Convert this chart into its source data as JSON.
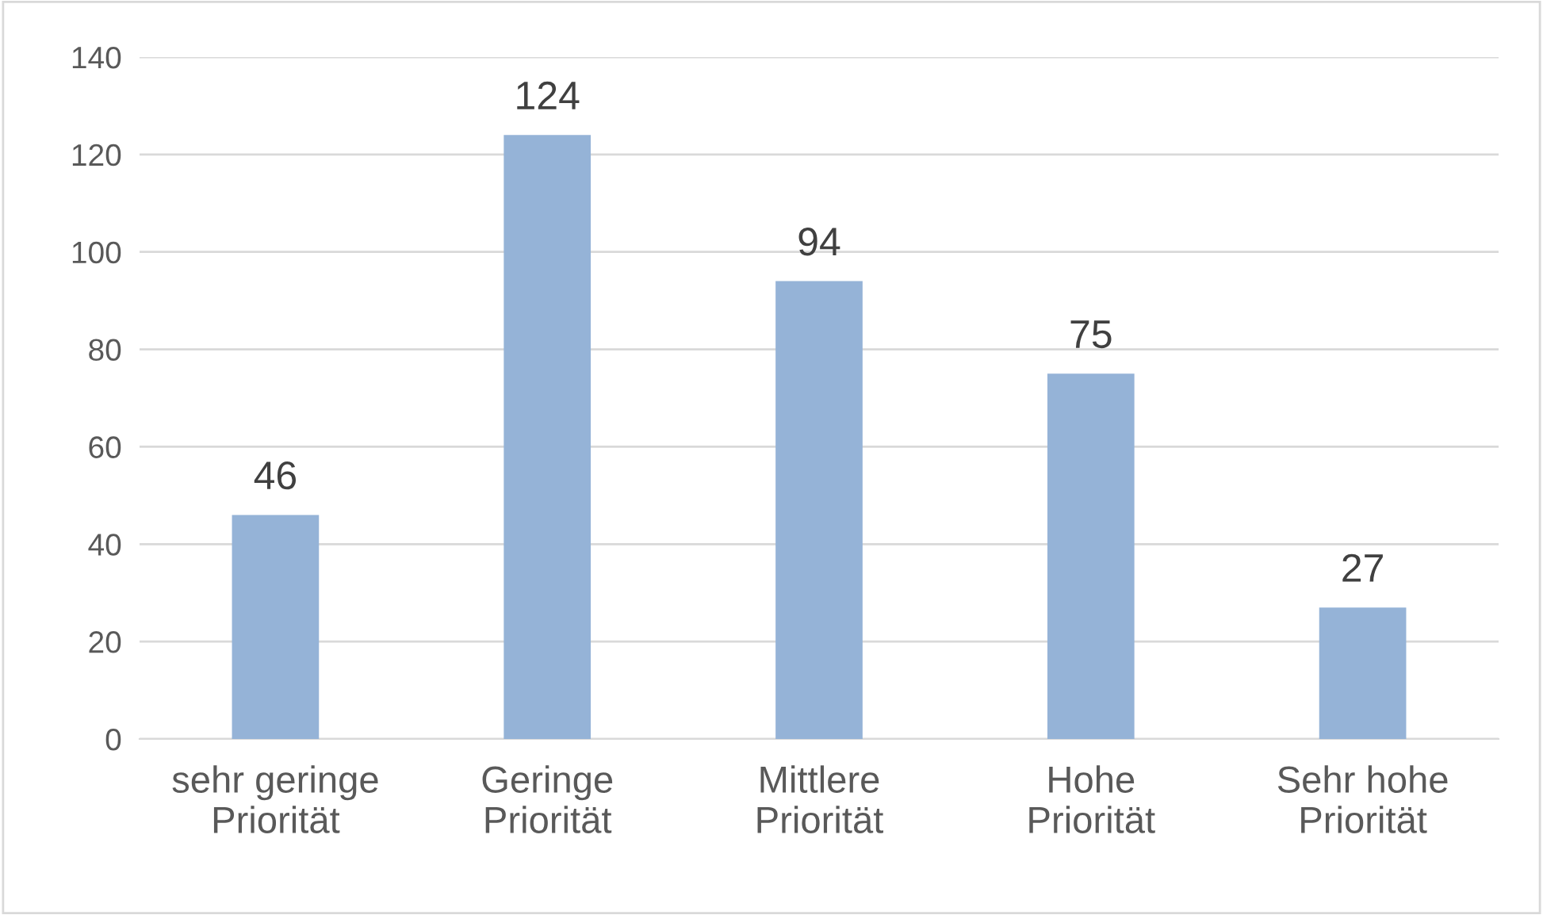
{
  "chart_data": {
    "type": "bar",
    "categories": [
      "sehr geringe\nPriorität",
      "Geringe\nPriorität",
      "Mittlere\nPriorität",
      "Hohe\nPriorität",
      "Sehr hohe\nPriorität"
    ],
    "values": [
      46,
      124,
      94,
      75,
      27
    ],
    "color": "#95b3d7",
    "ylim": [
      0,
      140
    ],
    "yticks": [
      0,
      20,
      40,
      60,
      80,
      100,
      120,
      140
    ],
    "grid": "y",
    "data_labels": true
  }
}
